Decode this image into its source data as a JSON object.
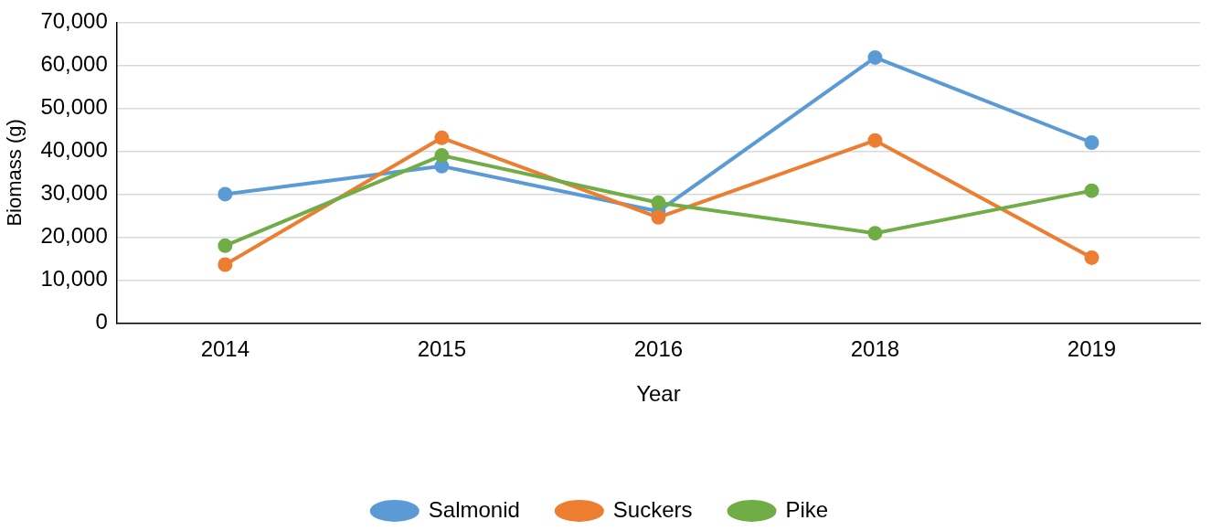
{
  "chart_data": {
    "type": "line",
    "xlabel": "Year",
    "ylabel": "Biomass (g)",
    "categories": [
      "2014",
      "2015",
      "2016",
      "2018",
      "2019"
    ],
    "series": [
      {
        "name": "Salmonid",
        "color": "#5b9bd5",
        "values": [
          30000,
          36500,
          26000,
          61800,
          42000
        ]
      },
      {
        "name": "Suckers",
        "color": "#ed7d31",
        "values": [
          13600,
          43100,
          24600,
          42500,
          15200
        ]
      },
      {
        "name": "Pike",
        "color": "#70ad47",
        "values": [
          18000,
          39000,
          28000,
          20900,
          30800
        ]
      }
    ],
    "ylim": [
      0,
      70000
    ],
    "yticks": [
      0,
      {
        "value": 10000,
        "label": "10,000"
      },
      {
        "value": 20000,
        "label": "20,000"
      },
      {
        "value": 30000,
        "label": "30,000"
      },
      {
        "value": 40000,
        "label": "40,000"
      },
      {
        "value": 50000,
        "label": "50,000"
      },
      {
        "value": 60000,
        "label": "60,000"
      },
      {
        "value": 70000,
        "label": "70,000"
      }
    ],
    "grid": "y",
    "legend": "bottom",
    "marker": "circle",
    "line_style": "solid"
  }
}
